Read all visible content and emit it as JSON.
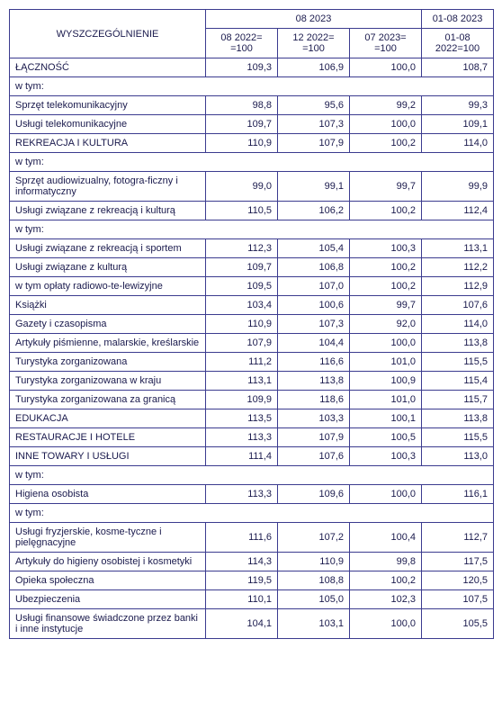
{
  "header": {
    "title": "WYSZCZEGÓLNIENIE",
    "group1": "08 2023",
    "group2": "01-08 2023",
    "sub1": "08 2022= =100",
    "sub2": "12 2022= =100",
    "sub3": "07 2023= =100",
    "sub4": "01-08 2022=100"
  },
  "rows": [
    {
      "label": "ŁĄCZNOŚĆ",
      "indent": 0,
      "vals": [
        "109,3",
        "106,9",
        "100,0",
        "108,7"
      ]
    },
    {
      "label": "w tym:",
      "indent": 1,
      "vals": null
    },
    {
      "label": "Sprzęt telekomunikacyjny",
      "indent": 1,
      "vals": [
        "98,8",
        "95,6",
        "99,2",
        "99,3"
      ]
    },
    {
      "label": "Usługi telekomunikacyjne",
      "indent": 1,
      "vals": [
        "109,7",
        "107,3",
        "100,0",
        "109,1"
      ]
    },
    {
      "label": "REKREACJA I KULTURA",
      "indent": 0,
      "vals": [
        "110,9",
        "107,9",
        "100,2",
        "114,0"
      ]
    },
    {
      "label": "w tym:",
      "indent": 1,
      "vals": null
    },
    {
      "label": "Sprzęt audiowizualny, fotogra-ficzny i informatyczny",
      "indent": 1,
      "vals": [
        "99,0",
        "99,1",
        "99,7",
        "99,9"
      ]
    },
    {
      "label": "Usługi związane z rekreacją i kulturą",
      "indent": 1,
      "vals": [
        "110,5",
        "106,2",
        "100,2",
        "112,4"
      ]
    },
    {
      "label": "w tym:",
      "indent": 2,
      "vals": null
    },
    {
      "label": "Usługi związane z rekreacją i sportem",
      "indent": 2,
      "vals": [
        "112,3",
        "105,4",
        "100,3",
        "113,1"
      ]
    },
    {
      "label": "Usługi związane z kulturą",
      "indent": 2,
      "vals": [
        "109,7",
        "106,8",
        "100,2",
        "112,2"
      ]
    },
    {
      "label": "w tym opłaty radiowo-te-lewizyjne",
      "indent": 3,
      "vals": [
        "109,5",
        "107,0",
        "100,2",
        "112,9"
      ]
    },
    {
      "label": "Książki",
      "indent": 1,
      "vals": [
        "103,4",
        "100,6",
        "99,7",
        "107,6"
      ]
    },
    {
      "label": "Gazety i czasopisma",
      "indent": 1,
      "vals": [
        "110,9",
        "107,3",
        "92,0",
        "114,0"
      ]
    },
    {
      "label": "Artykuły piśmienne, malarskie, kreślarskie",
      "indent": 1,
      "vals": [
        "107,9",
        "104,4",
        "100,0",
        "113,8"
      ]
    },
    {
      "label": "Turystyka zorganizowana",
      "indent": 1,
      "vals": [
        "111,2",
        "116,6",
        "101,0",
        "115,5"
      ]
    },
    {
      "label": "Turystyka zorganizowana w kraju",
      "indent": 2,
      "vals": [
        "113,1",
        "113,8",
        "100,9",
        "115,4"
      ]
    },
    {
      "label": "Turystyka zorganizowana za granicą",
      "indent": 2,
      "vals": [
        "109,9",
        "118,6",
        "101,0",
        "115,7"
      ]
    },
    {
      "label": "EDUKACJA",
      "indent": 0,
      "vals": [
        "113,5",
        "103,3",
        "100,1",
        "113,8"
      ]
    },
    {
      "label": "RESTAURACJE I HOTELE",
      "indent": 0,
      "vals": [
        "113,3",
        "107,9",
        "100,5",
        "115,5"
      ]
    },
    {
      "label": "INNE TOWARY I USŁUGI",
      "indent": 0,
      "vals": [
        "111,4",
        "107,6",
        "100,3",
        "113,0"
      ]
    },
    {
      "label": "w tym:",
      "indent": 1,
      "vals": null
    },
    {
      "label": "Higiena osobista",
      "indent": 1,
      "vals": [
        "113,3",
        "109,6",
        "100,0",
        "116,1"
      ]
    },
    {
      "label": "w tym:",
      "indent": 2,
      "vals": null
    },
    {
      "label": "Usługi fryzjerskie, kosme-tyczne i pielęgnacyjne",
      "indent": 2,
      "vals": [
        "111,6",
        "107,2",
        "100,4",
        "112,7"
      ]
    },
    {
      "label": "Artykuły do higieny osobistej i kosmetyki",
      "indent": 2,
      "vals": [
        "114,3",
        "110,9",
        "99,8",
        "117,5"
      ]
    },
    {
      "label": "Opieka społeczna",
      "indent": 1,
      "vals": [
        "119,5",
        "108,8",
        "100,2",
        "120,5"
      ]
    },
    {
      "label": "Ubezpieczenia",
      "indent": 1,
      "vals": [
        "110,1",
        "105,0",
        "102,3",
        "107,5"
      ]
    },
    {
      "label": "Usługi finansowe świadczone przez banki i inne instytucje",
      "indent": 1,
      "vals": [
        "104,1",
        "103,1",
        "100,0",
        "105,5"
      ]
    }
  ]
}
